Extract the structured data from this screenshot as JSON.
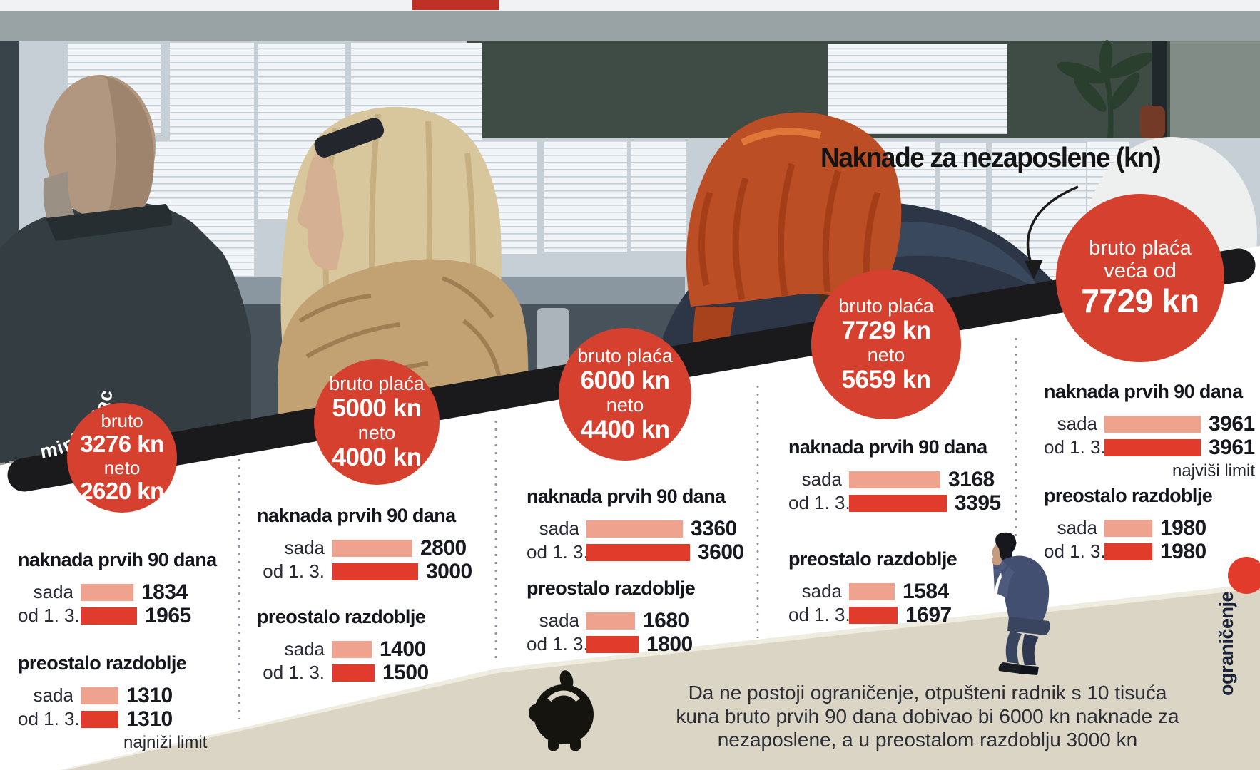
{
  "title": "Naknade za nezaposlene (kn)",
  "annotation_minimalac": "minimalac",
  "vertical_label_ogranicenje": "ograničenje",
  "section1_heading": "naknada prvih 90 dana",
  "section2_heading": "preostalo razdoblje",
  "note_lowest": "najniži limit",
  "note_highest": "najviši limit",
  "footer": {
    "line1": "Da ne postoji ograničenje, otpušteni radnik s 10 tisuća",
    "line2": "kuna bruto prvih 90 dana dobivao bi 6000 kn naknade za",
    "line3": "nezaposlene, a u preostalom razdoblju 3000 kn"
  },
  "circles": [
    {
      "l1": "bruto",
      "l2": "3276 kn",
      "l3": "neto",
      "l4": "2620 kn"
    },
    {
      "l1": "bruto plaća",
      "l2": "5000 kn",
      "l3": "neto",
      "l4": "4000 kn"
    },
    {
      "l1": "bruto plaća",
      "l2": "6000 kn",
      "l3": "neto",
      "l4": "4400 kn"
    },
    {
      "l1": "bruto plaća",
      "l2": "7729 kn",
      "l3": "neto",
      "l4": "5659 kn"
    },
    {
      "l1": "bruto plaća",
      "l2": "veća od",
      "l3": "7729 kn"
    }
  ],
  "chart_data": {
    "type": "bar",
    "unit": "kn",
    "series": [
      "sada",
      "od 1. 3."
    ],
    "colors": {
      "sada": "#efa28d",
      "od_1_3": "#e03b2b",
      "circle": "#d6402f"
    },
    "groups": [
      {
        "salary": "minimalac: bruto 3276 kn / neto 2620 kn",
        "first90": [
          1834,
          1965
        ],
        "remaining": [
          1310,
          1310
        ],
        "note": "najniži limit"
      },
      {
        "salary": "bruto 5000 kn / neto 4000 kn",
        "first90": [
          2800,
          3000
        ],
        "remaining": [
          1400,
          1500
        ]
      },
      {
        "salary": "bruto 6000 kn / neto 4400 kn",
        "first90": [
          3360,
          3600
        ],
        "remaining": [
          1680,
          1800
        ]
      },
      {
        "salary": "bruto 7729 kn / neto 5659 kn",
        "first90": [
          3168,
          3395
        ],
        "remaining": [
          1584,
          1697
        ]
      },
      {
        "salary": "bruto plaća veća od 7729 kn",
        "first90": [
          3961,
          3961
        ],
        "note": "najviši limit",
        "remaining": [
          1980,
          1980
        ]
      }
    ]
  }
}
